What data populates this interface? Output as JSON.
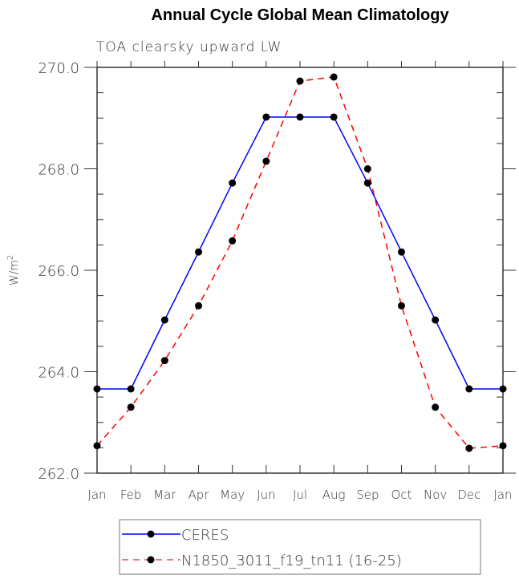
{
  "chart_data": {
    "type": "line",
    "title": "Annual Cycle Global Mean Climatology",
    "subtitle": "TOA clearsky upward LW",
    "xlabel": "",
    "ylabel": "W/m",
    "ylabel_sup": "2",
    "categories": [
      "Jan",
      "Feb",
      "Mar",
      "Apr",
      "May",
      "Jun",
      "Jul",
      "Aug",
      "Sep",
      "Oct",
      "Nov",
      "Dec",
      "Jan"
    ],
    "ylim": [
      262.0,
      270.0
    ],
    "yticks": [
      "262.0",
      "264.0",
      "266.0",
      "268.0",
      "270.0"
    ],
    "ytick_values": [
      262,
      264,
      266,
      268,
      270
    ],
    "legend_position": "bottom",
    "series": [
      {
        "name": "CERES",
        "color": "#0000ff",
        "dash": "solid",
        "values": [
          263.66,
          263.66,
          265.02,
          266.36,
          267.72,
          269.02,
          269.02,
          269.02,
          267.72,
          266.36,
          265.02,
          263.66,
          263.66
        ]
      },
      {
        "name": "N1850_3011_f19_tn11 (16-25)",
        "color": "#ff0000",
        "dash": "dashed",
        "values": [
          262.54,
          263.3,
          264.22,
          265.3,
          266.58,
          268.15,
          269.73,
          269.81,
          268.0,
          265.3,
          263.3,
          262.49,
          262.54
        ]
      }
    ]
  }
}
